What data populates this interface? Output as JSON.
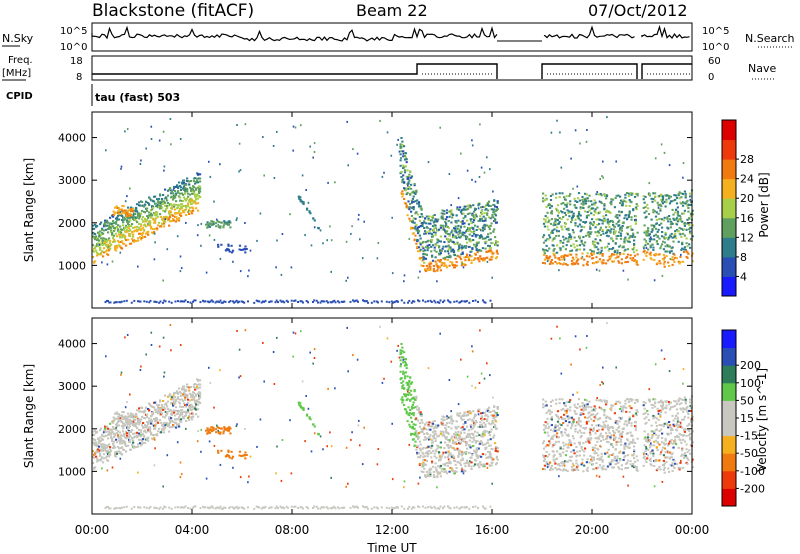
{
  "header": {
    "station": "Blackstone (fitACF)",
    "beam": "Beam 22",
    "date": "07/Oct/2012"
  },
  "top_panels": {
    "nsky_label": "N.Sky",
    "nsky_ticks": [
      "10^5",
      "10^0"
    ],
    "nsearch_label": "N.Search",
    "nsearch_ticks": [
      "10^5",
      "10^0"
    ],
    "freq_label": "Freq.",
    "freq_unit": "[MHz]",
    "freq_ticks": [
      "18",
      "8"
    ],
    "nave_label": "Nave",
    "nave_ticks": [
      "60",
      "0"
    ],
    "cpid_label": "CPID",
    "cpid_text": "tau (fast) 503"
  },
  "colors": {
    "power_scale": [
      "#1a1aff",
      "#2a4fb4",
      "#2e7d8a",
      "#5fa05f",
      "#a8cf4a",
      "#f5b020",
      "#f07a10",
      "#ee3a0a",
      "#dd0000"
    ],
    "velocity_scale": [
      "#dd0000",
      "#ee3a0a",
      "#f07a10",
      "#f5b020",
      "#c8c8c0",
      "#c8c8c0",
      "#5fc84a",
      "#2e7d5a",
      "#2a4fb4",
      "#1a1aff"
    ],
    "gray": "#c6c6be"
  },
  "chart_data": [
    {
      "type": "heatmap",
      "title": "Power",
      "ylabel": "Slant Range [km]",
      "colorbar_label": "Power [dB]",
      "colorbar_ticks": [
        "4",
        "8",
        "12",
        "16",
        "20",
        "24",
        "28"
      ],
      "ylim": [
        0,
        4600
      ],
      "y_ticks": [
        1000,
        2000,
        3000,
        4000
      ],
      "x_range_hours": [
        0,
        24
      ],
      "data_gaps_hours": [
        [
          16.2,
          18.0
        ],
        [
          21.8,
          22.0
        ]
      ],
      "regions": [
        {
          "t": [
            0.0,
            4.3
          ],
          "r": [
            1100,
            2900
          ],
          "p": 15
        },
        {
          "t": [
            12.4,
            16.2
          ],
          "r": [
            800,
            3200
          ],
          "p": 18
        },
        {
          "t": [
            18.0,
            24.0
          ],
          "r": [
            800,
            2700
          ],
          "p": 18
        }
      ]
    },
    {
      "type": "heatmap",
      "title": "Velocity",
      "ylabel": "Slant Range [km]",
      "colorbar_label": "Velocity [m s^-1]",
      "colorbar_ticks": [
        "-200",
        "-100",
        "-50",
        "-15",
        "15",
        "50",
        "100",
        "200"
      ],
      "ylim": [
        0,
        4600
      ],
      "y_ticks": [
        1000,
        2000,
        3000,
        4000
      ],
      "x_range_hours": [
        0,
        24
      ],
      "data_gaps_hours": [
        [
          16.2,
          18.0
        ],
        [
          21.8,
          22.0
        ]
      ],
      "regions": [
        {
          "t": [
            0.0,
            4.3
          ],
          "r": [
            1100,
            2900
          ],
          "v": 0
        },
        {
          "t": [
            4.5,
            5.6
          ],
          "r": [
            1800,
            2000
          ],
          "v": -60
        },
        {
          "t": [
            12.4,
            16.2
          ],
          "r": [
            800,
            3200
          ],
          "v": 0
        },
        {
          "t": [
            18.0,
            24.0
          ],
          "r": [
            800,
            2700
          ],
          "v": 0
        }
      ]
    }
  ],
  "x_axis": {
    "label": "Time UT",
    "ticks": [
      "00:00",
      "04:00",
      "08:00",
      "12:00",
      "16:00",
      "20:00",
      "00:00"
    ]
  }
}
